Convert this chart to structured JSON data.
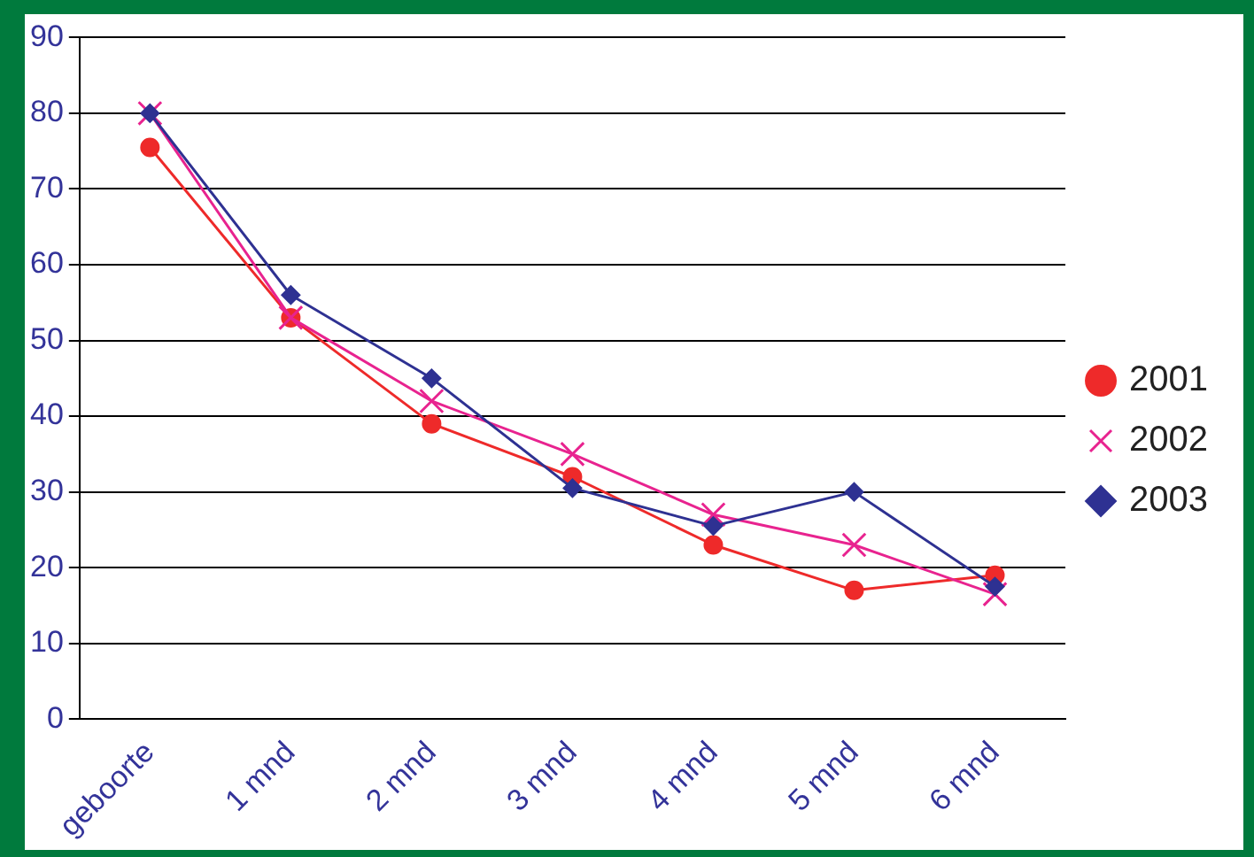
{
  "chart_data": {
    "type": "line",
    "categories": [
      "geboorte",
      "1 mnd",
      "2 mnd",
      "3 mnd",
      "4 mnd",
      "5 mnd",
      "6 mnd"
    ],
    "series": [
      {
        "name": "2001",
        "color": "#ee2a2a",
        "marker": "circle",
        "values": [
          75.5,
          53,
          39,
          32,
          23,
          17,
          19
        ]
      },
      {
        "name": "2002",
        "color": "#e8238f",
        "marker": "cross",
        "values": [
          80,
          53,
          42,
          35,
          27,
          23,
          16.5
        ]
      },
      {
        "name": "2003",
        "color": "#2e3192",
        "marker": "diamond",
        "values": [
          80,
          56,
          45,
          30.5,
          25.5,
          30,
          17.5
        ]
      }
    ],
    "ylim": [
      0,
      90
    ],
    "yticks": [
      0,
      10,
      20,
      30,
      40,
      50,
      60,
      70,
      80,
      90
    ],
    "grid": "y",
    "legend": "right",
    "line_style": "solid"
  }
}
